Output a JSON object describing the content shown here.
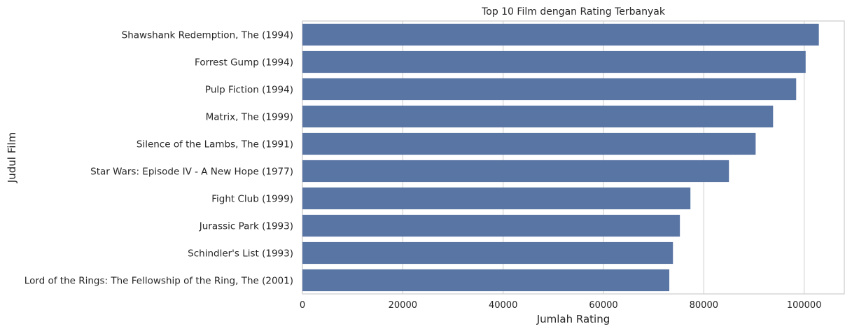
{
  "chart_data": {
    "type": "bar",
    "orientation": "horizontal",
    "title": "Top 10 Film dengan Rating Terbanyak",
    "xlabel": "Jumlah Rating",
    "ylabel": "Judul Film",
    "categories": [
      "Shawshank Redemption, The (1994)",
      "Forrest Gump (1994)",
      "Pulp Fiction (1994)",
      "Matrix, The (1999)",
      "Silence of the Lambs, The (1991)",
      "Star Wars: Episode IV - A New Hope (1977)",
      "Fight Club (1999)",
      "Jurassic Park (1993)",
      "Schindler's List (1993)",
      "Lord of the Rings: The Fellowship of the Ring, The (2001)"
    ],
    "values": [
      102929,
      100296,
      98409,
      93808,
      90330,
      85010,
      77332,
      75233,
      73849,
      73122
    ],
    "xlim": [
      0,
      108000
    ],
    "xticks": [
      0,
      20000,
      40000,
      60000,
      80000,
      100000
    ],
    "xtick_labels": [
      "0",
      "20000",
      "40000",
      "60000",
      "80000",
      "100000"
    ],
    "grid": "x-vertical",
    "bar_color": "#5975a4"
  }
}
